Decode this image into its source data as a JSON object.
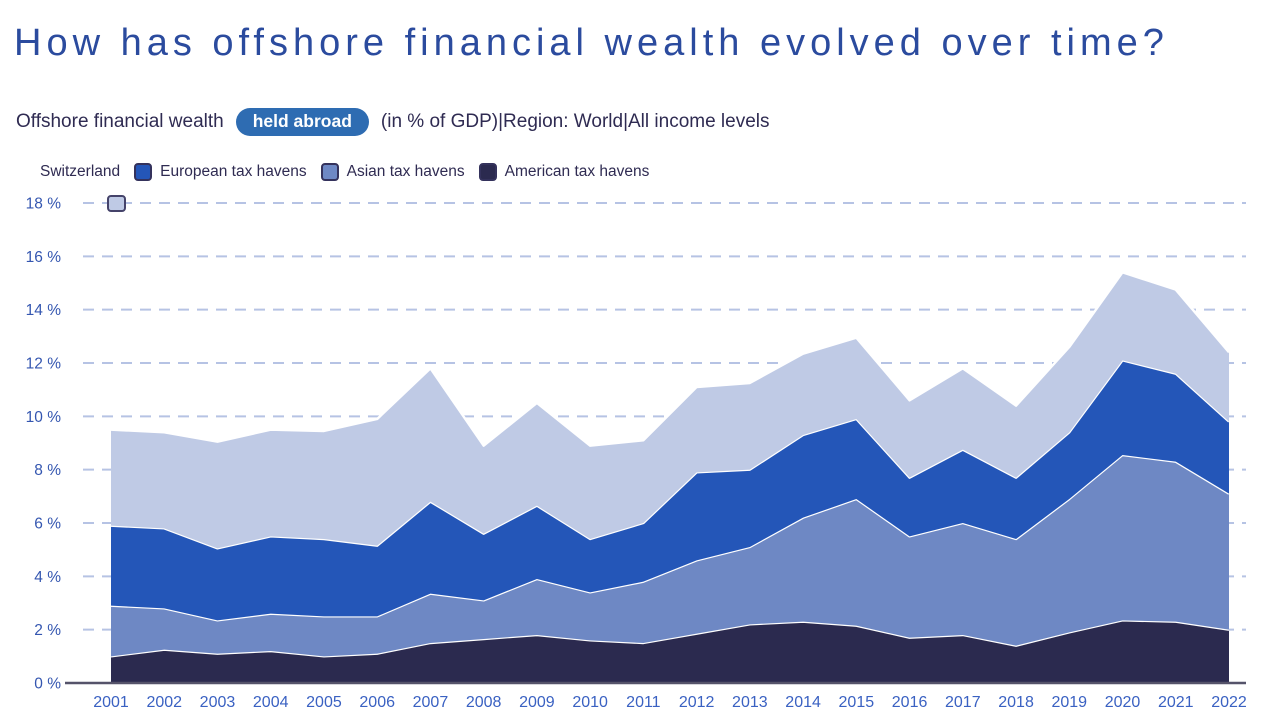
{
  "page": {
    "title": "How has offshore financial wealth evolved over time?",
    "subtitle": {
      "prefix": "Offshore financial wealth",
      "pill": "held abroad",
      "suffix": "(in % of GDP)|Region: World|All income levels"
    }
  },
  "legend": {
    "items": [
      {
        "label": "Switzerland"
      },
      {
        "label": "European tax havens"
      },
      {
        "label": "Asian tax havens"
      },
      {
        "label": "American tax havens"
      }
    ]
  },
  "colors": {
    "title": "#2b4b9e",
    "text_dark": "#2f2b52",
    "pill_bg": "#2e6cb2",
    "pill_text": "#ffffff",
    "y_label": "#3456b0",
    "x_label": "#3a61c2",
    "gridline": "#b6c3e4",
    "axis_line": "#55536a",
    "boundary_stroke": "#ffffff",
    "series": {
      "Switzerland": "#bfcae5",
      "European tax havens": "#2456b8",
      "Asian tax havens": "#6e88c4",
      "American tax havens": "#2b2a4f"
    }
  },
  "chart_data": {
    "type": "area",
    "stacked": true,
    "title": "How has offshore financial wealth evolved over time?",
    "ylabel": "Offshore financial wealth held abroad (in % of GDP)",
    "ytick_suffix": " %",
    "yticks": [
      0,
      2,
      4,
      6,
      8,
      10,
      12,
      14,
      16,
      18
    ],
    "ylim": [
      0,
      18.5
    ],
    "grid": "dashed-horizontal",
    "legend_position": "top",
    "categories": [
      "2001",
      "2002",
      "2003",
      "2004",
      "2005",
      "2006",
      "2007",
      "2008",
      "2009",
      "2010",
      "2011",
      "2012",
      "2013",
      "2014",
      "2015",
      "2016",
      "2017",
      "2018",
      "2019",
      "2020",
      "2021",
      "2022"
    ],
    "series": [
      {
        "name": "American tax havens",
        "values": [
          1.0,
          1.25,
          1.1,
          1.2,
          1.0,
          1.1,
          1.5,
          1.65,
          1.8,
          1.6,
          1.5,
          1.85,
          2.2,
          2.3,
          2.15,
          1.7,
          1.8,
          1.4,
          1.9,
          2.35,
          2.3,
          2.0
        ]
      },
      {
        "name": "Asian tax havens",
        "values": [
          1.9,
          1.55,
          1.25,
          1.4,
          1.5,
          1.4,
          1.85,
          1.45,
          2.1,
          1.8,
          2.3,
          2.75,
          2.9,
          3.9,
          4.75,
          3.8,
          4.2,
          4.0,
          5.0,
          6.2,
          6.0,
          5.1
        ]
      },
      {
        "name": "European tax havens",
        "values": [
          3.0,
          3.0,
          2.7,
          2.9,
          2.9,
          2.65,
          3.45,
          2.5,
          2.75,
          2.0,
          2.2,
          3.3,
          2.9,
          3.1,
          3.0,
          2.2,
          2.75,
          2.3,
          2.5,
          3.55,
          3.3,
          2.7
        ]
      },
      {
        "name": "Switzerland",
        "values": [
          3.6,
          3.6,
          4.0,
          4.0,
          4.05,
          4.75,
          5.0,
          3.3,
          3.85,
          3.5,
          3.1,
          3.2,
          3.25,
          3.05,
          3.05,
          2.9,
          3.05,
          2.7,
          3.2,
          3.3,
          3.15,
          2.6
        ]
      }
    ],
    "stack_totals": [
      9.5,
      9.4,
      9.05,
      9.5,
      9.45,
      9.9,
      11.8,
      8.9,
      10.5,
      8.9,
      9.1,
      11.1,
      11.25,
      12.35,
      12.95,
      10.6,
      11.8,
      10.4,
      12.6,
      15.4,
      14.75,
      12.4
    ]
  }
}
